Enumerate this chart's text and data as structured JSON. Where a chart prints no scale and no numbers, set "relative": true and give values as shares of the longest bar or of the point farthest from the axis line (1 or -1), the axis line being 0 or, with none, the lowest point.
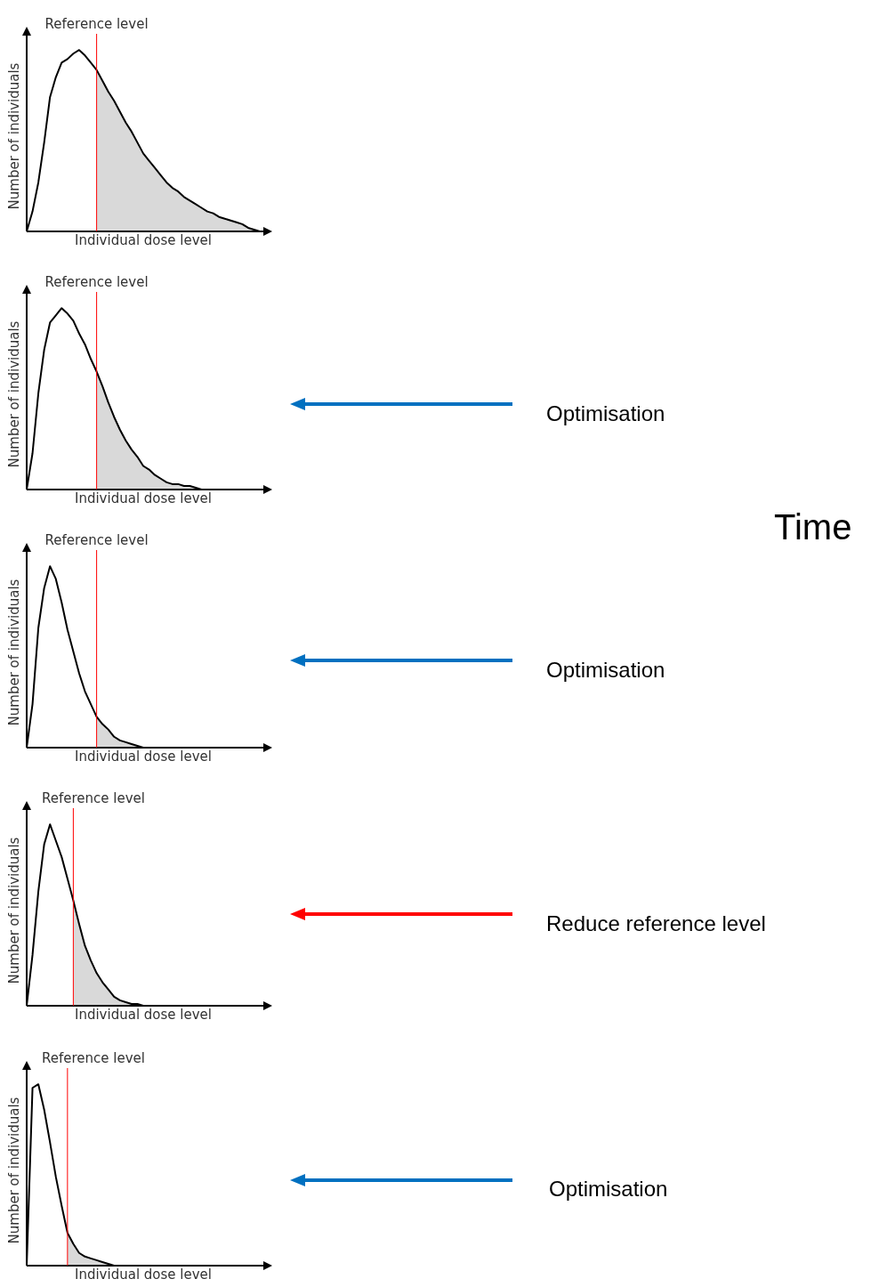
{
  "chart_data": [
    {
      "type": "line",
      "relative": true,
      "xlabel": "Individual dose level",
      "ylabel": "Number of individuals",
      "tick_labels": false,
      "annotations": [
        "Reference level"
      ],
      "categories": [
        null,
        null,
        null,
        null,
        null,
        null,
        null,
        null,
        null,
        null,
        null,
        null,
        null,
        null,
        null,
        null,
        null,
        null,
        null,
        null,
        null,
        null,
        null,
        null,
        null,
        null,
        null,
        null,
        null,
        null,
        null,
        null,
        null,
        null,
        null,
        null,
        null,
        null,
        null,
        null,
        null
      ],
      "series": [
        {
          "type": "line",
          "color": "#000000",
          "values": [
            0,
            0.11,
            0.27,
            0.49,
            0.74,
            0.85,
            0.93,
            0.95,
            0.98,
            1,
            0.97,
            0.93,
            0.89,
            0.83,
            0.77,
            0.72,
            0.66,
            0.6,
            0.55,
            0.49,
            0.43,
            0.39,
            0.35,
            0.31,
            0.27,
            0.24,
            0.22,
            0.19,
            0.17,
            0.15,
            0.13,
            0.11,
            0.1,
            0.08,
            0.07,
            0.06,
            0.05,
            0.04,
            0.02,
            0.01,
            0
          ]
        },
        {
          "type": "area",
          "color": "#d9d9d9",
          "values": [
            null,
            null,
            null,
            null,
            null,
            null,
            null,
            null,
            null,
            null,
            null,
            null,
            0.89,
            0.83,
            0.77,
            0.72,
            0.66,
            0.6,
            0.55,
            0.49,
            0.43,
            0.39,
            0.35,
            0.31,
            0.27,
            0.24,
            0.22,
            0.19,
            0.17,
            0.15,
            0.13,
            0.11,
            0.1,
            0.08,
            0.07,
            0.06,
            0.05,
            0.04,
            0.02,
            0.01,
            0
          ]
        }
      ]
    },
    {
      "type": "line",
      "relative": true,
      "xlabel": "Individual dose level",
      "ylabel": "Number of individuals",
      "tick_labels": false,
      "annotations": [
        "Reference level"
      ],
      "categories": [
        null,
        null,
        null,
        null,
        null,
        null,
        null,
        null,
        null,
        null,
        null,
        null,
        null,
        null,
        null,
        null,
        null,
        null,
        null,
        null,
        null,
        null,
        null,
        null,
        null,
        null,
        null,
        null,
        null,
        null,
        null,
        null,
        null,
        null,
        null,
        null,
        null,
        null,
        null,
        null,
        null
      ],
      "series": [
        {
          "type": "line",
          "color": "#000000",
          "values": [
            0,
            0.2,
            0.53,
            0.77,
            0.92,
            0.96,
            1,
            0.97,
            0.93,
            0.86,
            0.8,
            0.72,
            0.65,
            0.57,
            0.48,
            0.4,
            0.33,
            0.27,
            0.22,
            0.18,
            0.13,
            0.11,
            0.08,
            0.06,
            0.04,
            0.03,
            0.03,
            0.02,
            0.02,
            0.01,
            0,
            0,
            0,
            0,
            0,
            0,
            0,
            0,
            0,
            0,
            0
          ]
        },
        {
          "type": "area",
          "color": "#d9d9d9",
          "values": [
            null,
            null,
            null,
            null,
            null,
            null,
            null,
            null,
            null,
            null,
            null,
            null,
            0.65,
            0.57,
            0.48,
            0.4,
            0.33,
            0.27,
            0.22,
            0.18,
            0.13,
            0.11,
            0.08,
            0.06,
            0.04,
            0.03,
            0.03,
            0.02,
            0.02,
            0.01,
            0,
            0,
            0,
            0,
            0,
            0,
            0,
            0,
            0,
            0,
            0
          ]
        }
      ]
    },
    {
      "type": "line",
      "relative": true,
      "xlabel": "Individual dose level",
      "ylabel": "Number of individuals",
      "tick_labels": false,
      "annotations": [
        "Reference level"
      ],
      "categories": [
        null,
        null,
        null,
        null,
        null,
        null,
        null,
        null,
        null,
        null,
        null,
        null,
        null,
        null,
        null,
        null,
        null,
        null,
        null,
        null,
        null,
        null,
        null,
        null,
        null,
        null,
        null,
        null,
        null,
        null,
        null,
        null,
        null,
        null,
        null,
        null,
        null,
        null,
        null,
        null,
        null
      ],
      "series": [
        {
          "type": "line",
          "color": "#000000",
          "values": [
            0,
            0.24,
            0.66,
            0.88,
            1,
            0.93,
            0.8,
            0.65,
            0.53,
            0.41,
            0.31,
            0.24,
            0.17,
            0.13,
            0.1,
            0.06,
            0.04,
            0.03,
            0.02,
            0.01,
            0,
            0,
            0,
            0,
            0,
            0,
            0,
            0,
            0,
            0,
            0,
            0,
            0,
            0,
            0,
            0,
            0,
            0,
            0,
            0,
            0
          ]
        },
        {
          "type": "area",
          "color": "#d9d9d9",
          "values": [
            null,
            null,
            null,
            null,
            null,
            null,
            null,
            null,
            null,
            null,
            null,
            null,
            0.17,
            0.13,
            0.1,
            0.06,
            0.04,
            0.03,
            0.02,
            0.01,
            0,
            0,
            0,
            0,
            0,
            0,
            0,
            0,
            0,
            0,
            0,
            0,
            0,
            0,
            0,
            0,
            0,
            0,
            0,
            0,
            0
          ]
        }
      ]
    },
    {
      "type": "line",
      "relative": true,
      "xlabel": "Individual dose level",
      "ylabel": "Number of individuals",
      "tick_labels": false,
      "annotations": [
        "Reference level"
      ],
      "categories": [
        null,
        null,
        null,
        null,
        null,
        null,
        null,
        null,
        null,
        null,
        null,
        null,
        null,
        null,
        null,
        null,
        null,
        null,
        null,
        null,
        null,
        null,
        null,
        null,
        null,
        null,
        null,
        null,
        null,
        null,
        null,
        null,
        null,
        null,
        null,
        null,
        null,
        null,
        null,
        null,
        null
      ],
      "series": [
        {
          "type": "line",
          "color": "#000000",
          "values": [
            0,
            0.28,
            0.63,
            0.89,
            1,
            0.91,
            0.82,
            0.7,
            0.58,
            0.45,
            0.33,
            0.25,
            0.18,
            0.13,
            0.09,
            0.05,
            0.03,
            0.02,
            0.01,
            0.01,
            0,
            0,
            0,
            0,
            0,
            0,
            0,
            0,
            0,
            0,
            0,
            0,
            0,
            0,
            0,
            0,
            0,
            0,
            0,
            0,
            0
          ]
        },
        {
          "type": "area",
          "color": "#d9d9d9",
          "values": [
            null,
            null,
            null,
            null,
            null,
            null,
            null,
            null,
            0.58,
            0.45,
            0.33,
            0.25,
            0.18,
            0.13,
            0.09,
            0.05,
            0.03,
            0.02,
            0.01,
            0.01,
            0,
            0,
            0,
            0,
            0,
            0,
            0,
            0,
            0,
            0,
            0,
            0,
            0,
            0,
            0,
            0,
            0,
            0,
            0,
            0,
            0
          ]
        }
      ]
    },
    {
      "type": "line",
      "relative": true,
      "xlabel": "Individual dose level",
      "ylabel": "Number of individuals",
      "tick_labels": false,
      "annotations": [
        "Reference level"
      ],
      "categories": [
        null,
        null,
        null,
        null,
        null,
        null,
        null,
        null,
        null,
        null,
        null,
        null,
        null,
        null,
        null,
        null,
        null,
        null,
        null,
        null,
        null,
        null,
        null,
        null,
        null,
        null,
        null,
        null,
        null,
        null,
        null,
        null,
        null,
        null,
        null,
        null,
        null,
        null,
        null,
        null,
        null
      ],
      "series": [
        {
          "type": "line",
          "color": "#000000",
          "values": [
            0,
            0.98,
            1,
            0.86,
            0.68,
            0.49,
            0.33,
            0.18,
            0.12,
            0.07,
            0.05,
            0.04,
            0.03,
            0.02,
            0.01,
            0,
            0,
            0,
            0,
            0,
            0,
            0,
            0,
            0,
            0,
            0,
            0,
            0,
            0,
            0,
            0,
            0,
            0,
            0,
            0,
            0,
            0,
            0,
            0,
            0,
            0
          ]
        },
        {
          "type": "area",
          "color": "#d9d9d9",
          "values": [
            null,
            null,
            null,
            null,
            null,
            null,
            null,
            0.18,
            0.12,
            0.07,
            0.05,
            0.04,
            0.03,
            0.02,
            0.01,
            0,
            0,
            0,
            0,
            0,
            0,
            0,
            0,
            0,
            0,
            0,
            0,
            0,
            0,
            0,
            0,
            0,
            0,
            0,
            0,
            0,
            0,
            0,
            0,
            0,
            0
          ]
        }
      ]
    },
    {
      "type": "other",
      "annotations": [
        "Optimisation",
        "Optimisation",
        "Reduce reference level",
        "Optimisation",
        "Time"
      ]
    }
  ]
}
